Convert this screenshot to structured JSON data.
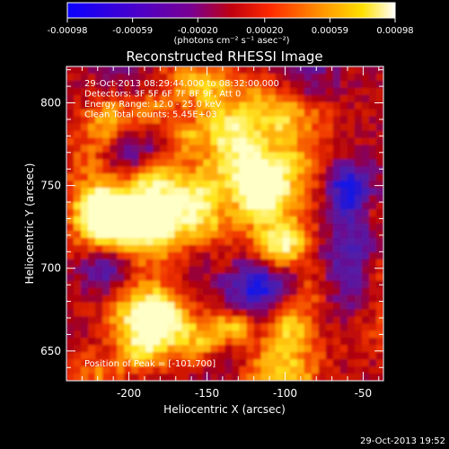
{
  "colorbar": {
    "tick_labels": [
      "-0.00098",
      "-0.00059",
      "-0.00020",
      "0.00020",
      "0.00059",
      "0.00098"
    ],
    "values": [
      -0.00098,
      -0.00059,
      -0.0002,
      0.0002,
      0.00059,
      0.00098
    ],
    "units": "(photons cm⁻² s⁻¹ asec⁻²)",
    "colors": [
      "#1010ff",
      "#7a00a0",
      "#c00000",
      "#ff3300",
      "#ff8800",
      "#ffff00",
      "#ffffff"
    ]
  },
  "image": {
    "title": "Reconstructed RHESSI Image",
    "info_lines": [
      "29-Oct-2013 08:29:44.000 to 08:32:00.000",
      "Detectors: 3F 5F 6F 7F 8F 9F, Att 0",
      "Energy Range: 12.0 - 25.0 keV",
      "Clean    Total counts: 5.45E+03"
    ],
    "peak_label": "Position of Peak = [-101,700]",
    "xlabel": "Heliocentric X (arcsec)",
    "ylabel": "Heliocentric Y (arcsec)",
    "x_ticks": [
      "-200",
      "-150",
      "-100",
      "-50"
    ],
    "x_tick_values": [
      -200,
      -150,
      -100,
      -50
    ],
    "y_ticks": [
      "800",
      "750",
      "700",
      "650"
    ],
    "y_tick_values": [
      800,
      750,
      700,
      650
    ],
    "xlim": [
      -240,
      -37
    ],
    "ylim": [
      632,
      822
    ]
  },
  "footer": {
    "timestamp": "29-Oct-2013 19:52"
  }
}
